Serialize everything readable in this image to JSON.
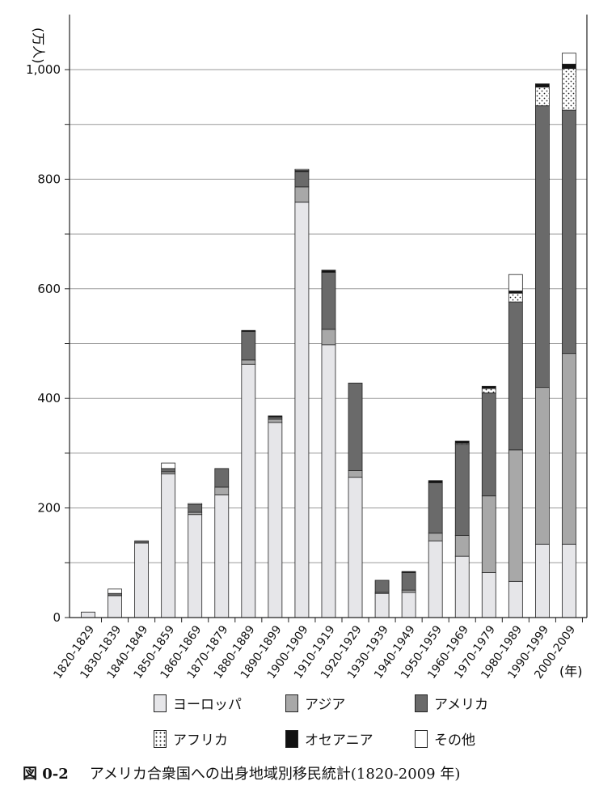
{
  "chart_data": {
    "type": "bar",
    "stacked": true,
    "ylabel": "(万人)",
    "xunit": "(年)",
    "ylim": [
      0,
      1000
    ],
    "yticks": [
      0,
      200,
      400,
      600,
      800,
      1000
    ],
    "ytick_labels": [
      "0",
      "200",
      "400",
      "600",
      "800",
      "1,000"
    ],
    "grid": true,
    "categories": [
      "1820-1829",
      "1830-1839",
      "1840-1849",
      "1850-1859",
      "1860-1869",
      "1870-1879",
      "1880-1889",
      "1890-1899",
      "1900-1909",
      "1910-1919",
      "1920-1929",
      "1930-1939",
      "1940-1949",
      "1950-1959",
      "1960-1969",
      "1970-1979",
      "1980-1989",
      "1990-1999",
      "2000-2009"
    ],
    "series": [
      {
        "name": "ヨーロッパ",
        "color": "#e6e6e9",
        "pattern": "solid",
        "values": [
          10,
          40,
          136,
          262,
          188,
          224,
          462,
          356,
          758,
          498,
          256,
          44,
          46,
          140,
          112,
          82,
          66,
          134,
          134
        ]
      },
      {
        "name": "アジア",
        "color": "#a8a8a8",
        "pattern": "solid",
        "values": [
          0,
          0,
          0,
          4,
          4,
          14,
          8,
          6,
          28,
          28,
          12,
          2,
          4,
          14,
          38,
          140,
          240,
          286,
          348
        ]
      },
      {
        "name": "アメリカ",
        "color": "#6a6a6a",
        "pattern": "solid",
        "values": [
          0,
          4,
          4,
          6,
          14,
          34,
          52,
          4,
          28,
          104,
          160,
          22,
          32,
          92,
          166,
          188,
          270,
          514,
          444
        ]
      },
      {
        "name": "アフリカ",
        "color": "#ffffff",
        "pattern": "dots",
        "values": [
          0,
          0,
          0,
          0,
          0,
          0,
          0,
          0,
          0,
          0,
          0,
          0,
          0,
          0,
          2,
          8,
          16,
          34,
          76
        ]
      },
      {
        "name": "オセアニア",
        "color": "#111111",
        "pattern": "solid",
        "values": [
          0,
          0,
          0,
          0,
          0,
          0,
          2,
          2,
          2,
          4,
          0,
          0,
          2,
          4,
          4,
          4,
          4,
          6,
          8
        ]
      },
      {
        "name": "その他",
        "color": "#ffffff",
        "pattern": "solid",
        "values": [
          0,
          8,
          0,
          10,
          2,
          0,
          0,
          0,
          2,
          0,
          0,
          0,
          0,
          0,
          0,
          0,
          30,
          0,
          20
        ]
      }
    ]
  },
  "caption": {
    "number": "図 0-2",
    "text": "アメリカ合衆国への出身地域別移民統計(1820-2009 年)"
  }
}
